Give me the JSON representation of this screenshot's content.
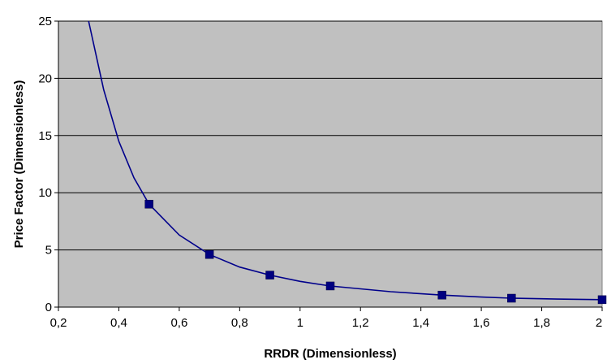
{
  "chart_data": {
    "type": "line",
    "title": "",
    "xlabel": "RRDR (Dimensionless)",
    "ylabel": "Price Factor (Dimensionless)",
    "xlim": [
      0.2,
      2.0
    ],
    "ylim": [
      0,
      25
    ],
    "x_ticks": [
      0.2,
      0.4,
      0.6,
      0.8,
      1.0,
      1.2,
      1.4,
      1.6,
      1.8,
      2.0
    ],
    "x_tick_labels": [
      "0,2",
      "0,4",
      "0,6",
      "0,8",
      "1",
      "1,2",
      "1,4",
      "1,6",
      "1,8",
      "2"
    ],
    "y_ticks": [
      0,
      5,
      10,
      15,
      20,
      25
    ],
    "y_tick_labels": [
      "0",
      "5",
      "10",
      "15",
      "20",
      "25"
    ],
    "grid": "horizontal",
    "legend": "none",
    "series": [
      {
        "color": "#00008b",
        "marker": "square",
        "curve": [
          {
            "x": 0.3,
            "y": 25.4
          },
          {
            "x": 0.35,
            "y": 19.0
          },
          {
            "x": 0.4,
            "y": 14.5
          },
          {
            "x": 0.45,
            "y": 11.3
          },
          {
            "x": 0.5,
            "y": 9.0
          },
          {
            "x": 0.6,
            "y": 6.3
          },
          {
            "x": 0.7,
            "y": 4.6
          },
          {
            "x": 0.8,
            "y": 3.5
          },
          {
            "x": 0.9,
            "y": 2.8
          },
          {
            "x": 1.0,
            "y": 2.25
          },
          {
            "x": 1.1,
            "y": 1.85
          },
          {
            "x": 1.3,
            "y": 1.35
          },
          {
            "x": 1.47,
            "y": 1.05
          },
          {
            "x": 1.6,
            "y": 0.88
          },
          {
            "x": 1.7,
            "y": 0.78
          },
          {
            "x": 1.85,
            "y": 0.7
          },
          {
            "x": 2.0,
            "y": 0.65
          }
        ],
        "points": [
          {
            "x": 0.5,
            "y": 9.0
          },
          {
            "x": 0.7,
            "y": 4.6
          },
          {
            "x": 0.9,
            "y": 2.8
          },
          {
            "x": 1.1,
            "y": 1.85
          },
          {
            "x": 1.47,
            "y": 1.05
          },
          {
            "x": 1.7,
            "y": 0.78
          },
          {
            "x": 2.0,
            "y": 0.65
          }
        ]
      }
    ],
    "colors": {
      "plot_background": "#c0c0c0",
      "gridline": "#000000",
      "line": "#00008b",
      "marker_fill": "#000080"
    }
  }
}
